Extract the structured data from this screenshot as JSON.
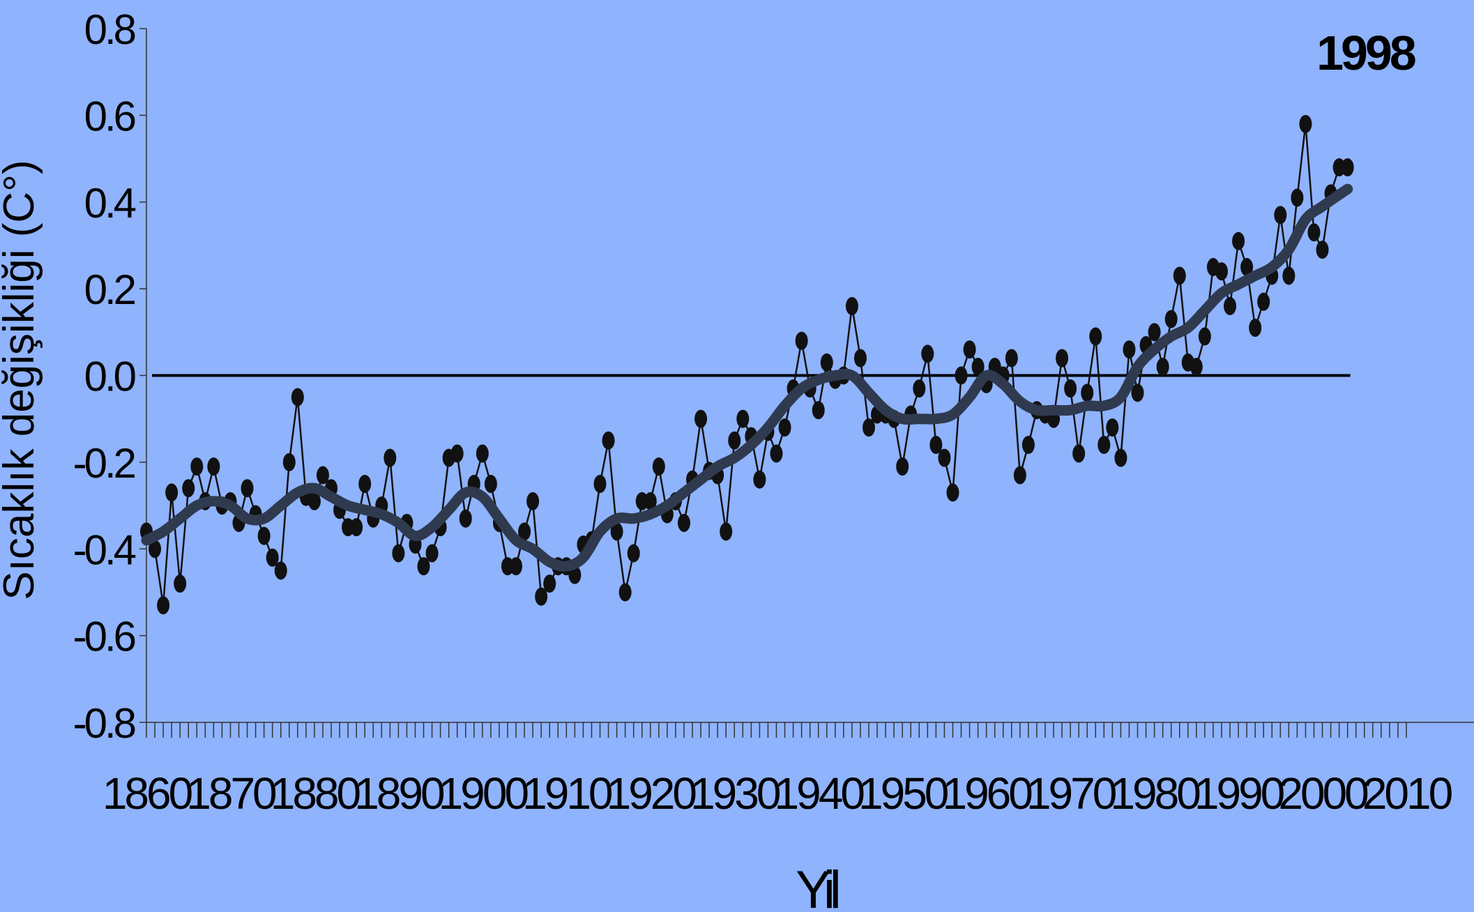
{
  "chart_data": {
    "type": "line",
    "xlabel": "Yil",
    "ylabel": "Sıcaklık değişikliği (C°)",
    "xlim": [
      1860,
      2010
    ],
    "ylim": [
      -0.8,
      0.8
    ],
    "x_tick_labels": [
      "1860",
      "1870",
      "1880",
      "1890",
      "1900",
      "1910",
      "1920",
      "1930",
      "1940",
      "1950",
      "1960",
      "1970",
      "1980",
      "1990",
      "2000",
      "2010"
    ],
    "y_tick_labels": [
      "0.8",
      "0.6",
      "0.4",
      "0.2",
      "0.0",
      "-0.2",
      "-0.4",
      "-0.6",
      "-0.8"
    ],
    "y_ticks": [
      0.8,
      0.6,
      0.4,
      0.2,
      0.0,
      -0.2,
      -0.4,
      -0.6,
      -0.8
    ],
    "grid": false,
    "reference_line": 0.0,
    "annotation": {
      "text": "1998",
      "x": 1998
    },
    "series": [
      {
        "style": "markers-thin-line",
        "color": "#111111",
        "x": [
          1860,
          1861,
          1862,
          1863,
          1864,
          1865,
          1866,
          1867,
          1868,
          1869,
          1870,
          1871,
          1872,
          1873,
          1874,
          1875,
          1876,
          1877,
          1878,
          1879,
          1880,
          1881,
          1882,
          1883,
          1884,
          1885,
          1886,
          1887,
          1888,
          1889,
          1890,
          1891,
          1892,
          1893,
          1894,
          1895,
          1896,
          1897,
          1898,
          1899,
          1900,
          1901,
          1902,
          1903,
          1904,
          1905,
          1906,
          1907,
          1908,
          1909,
          1910,
          1911,
          1912,
          1913,
          1914,
          1915,
          1916,
          1917,
          1918,
          1919,
          1920,
          1921,
          1922,
          1923,
          1924,
          1925,
          1926,
          1927,
          1928,
          1929,
          1930,
          1931,
          1932,
          1933,
          1934,
          1935,
          1936,
          1937,
          1938,
          1939,
          1940,
          1941,
          1942,
          1943,
          1944,
          1945,
          1946,
          1947,
          1948,
          1949,
          1950,
          1951,
          1952,
          1953,
          1954,
          1955,
          1956,
          1957,
          1958,
          1959,
          1960,
          1961,
          1962,
          1963,
          1964,
          1965,
          1966,
          1967,
          1968,
          1969,
          1970,
          1971,
          1972,
          1973,
          1974,
          1975,
          1976,
          1977,
          1978,
          1979,
          1980,
          1981,
          1982,
          1983,
          1984,
          1985,
          1986,
          1987,
          1988,
          1989,
          1990,
          1991,
          1992,
          1993,
          1994,
          1995,
          1996,
          1997,
          1998,
          1999,
          2000,
          2001,
          2002,
          2003
        ],
        "values": [
          -0.36,
          -0.4,
          -0.53,
          -0.27,
          -0.48,
          -0.26,
          -0.21,
          -0.29,
          -0.21,
          -0.3,
          -0.29,
          -0.34,
          -0.26,
          -0.32,
          -0.37,
          -0.42,
          -0.45,
          -0.2,
          -0.05,
          -0.28,
          -0.29,
          -0.23,
          -0.26,
          -0.31,
          -0.35,
          -0.35,
          -0.25,
          -0.33,
          -0.3,
          -0.19,
          -0.41,
          -0.34,
          -0.39,
          -0.44,
          -0.41,
          -0.35,
          -0.19,
          -0.18,
          -0.33,
          -0.25,
          -0.18,
          -0.25,
          -0.34,
          -0.44,
          -0.44,
          -0.36,
          -0.29,
          -0.51,
          -0.48,
          -0.44,
          -0.44,
          -0.46,
          -0.39,
          -0.38,
          -0.25,
          -0.15,
          -0.36,
          -0.5,
          -0.41,
          -0.29,
          -0.29,
          -0.21,
          -0.32,
          -0.29,
          -0.34,
          -0.24,
          -0.1,
          -0.22,
          -0.23,
          -0.36,
          -0.15,
          -0.1,
          -0.14,
          -0.24,
          -0.13,
          -0.18,
          -0.12,
          -0.03,
          0.08,
          -0.03,
          -0.08,
          0.03,
          -0.01,
          0.0,
          0.16,
          0.04,
          -0.12,
          -0.09,
          -0.09,
          -0.1,
          -0.21,
          -0.09,
          -0.03,
          0.05,
          -0.16,
          -0.19,
          -0.27,
          0.0,
          0.06,
          0.02,
          -0.02,
          0.02,
          0.0,
          0.04,
          -0.23,
          -0.16,
          -0.08,
          -0.09,
          -0.1,
          0.04,
          -0.03,
          -0.18,
          -0.04,
          0.09,
          -0.16,
          -0.12,
          -0.19,
          0.06,
          -0.04,
          0.07,
          0.1,
          0.02,
          0.13,
          0.23,
          0.03,
          0.02,
          0.09,
          0.25,
          0.24,
          0.16,
          0.31,
          0.25,
          0.11,
          0.17,
          0.23,
          0.37,
          0.23,
          0.41,
          0.58,
          0.33,
          0.29,
          0.42,
          0.48,
          0.48
        ]
      },
      {
        "style": "thick-smoothed-line",
        "color": "#2f3a4f",
        "x": [
          1860,
          1862,
          1864,
          1866,
          1868,
          1870,
          1872,
          1874,
          1876,
          1878,
          1880,
          1882,
          1884,
          1886,
          1888,
          1890,
          1892,
          1894,
          1896,
          1898,
          1900,
          1902,
          1904,
          1906,
          1908,
          1910,
          1912,
          1914,
          1916,
          1918,
          1920,
          1922,
          1924,
          1926,
          1928,
          1930,
          1932,
          1934,
          1936,
          1938,
          1940,
          1942,
          1944,
          1946,
          1948,
          1950,
          1952,
          1954,
          1956,
          1958,
          1960,
          1962,
          1964,
          1966,
          1968,
          1970,
          1972,
          1974,
          1976,
          1978,
          1980,
          1982,
          1984,
          1986,
          1988,
          1990,
          1992,
          1994,
          1996,
          1998,
          2000,
          2003
        ],
        "values": [
          -0.38,
          -0.36,
          -0.33,
          -0.3,
          -0.29,
          -0.3,
          -0.33,
          -0.33,
          -0.3,
          -0.27,
          -0.26,
          -0.28,
          -0.3,
          -0.31,
          -0.32,
          -0.34,
          -0.37,
          -0.35,
          -0.31,
          -0.27,
          -0.28,
          -0.33,
          -0.38,
          -0.4,
          -0.43,
          -0.44,
          -0.42,
          -0.36,
          -0.33,
          -0.33,
          -0.32,
          -0.3,
          -0.27,
          -0.24,
          -0.21,
          -0.19,
          -0.16,
          -0.12,
          -0.07,
          -0.03,
          -0.01,
          0.0,
          0.0,
          -0.04,
          -0.08,
          -0.1,
          -0.1,
          -0.1,
          -0.09,
          -0.05,
          0.0,
          -0.02,
          -0.06,
          -0.08,
          -0.08,
          -0.08,
          -0.07,
          -0.07,
          -0.05,
          0.02,
          0.06,
          0.09,
          0.11,
          0.15,
          0.19,
          0.21,
          0.23,
          0.25,
          0.29,
          0.36,
          0.39,
          0.43
        ]
      }
    ]
  }
}
